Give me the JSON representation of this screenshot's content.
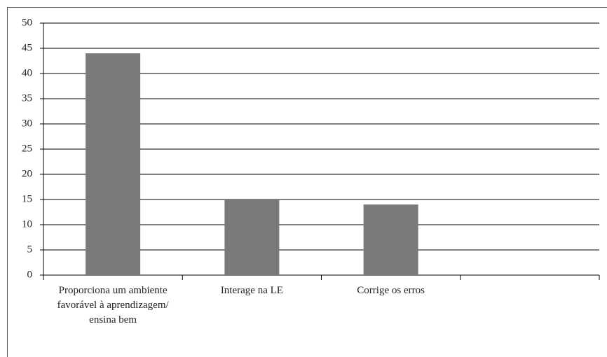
{
  "chart_data": {
    "type": "bar",
    "categories": [
      "Proporciona um ambiente favorável à aprendizagem/ ensina bem",
      "Interage na LE",
      "Corrige os erros",
      null
    ],
    "values": [
      44,
      15,
      14,
      null
    ],
    "color": "#7a7a7c",
    "ylim": [
      0,
      50
    ],
    "yticks": [
      0,
      5,
      10,
      15,
      20,
      25,
      30,
      35,
      40,
      45,
      50
    ],
    "grid": true
  }
}
